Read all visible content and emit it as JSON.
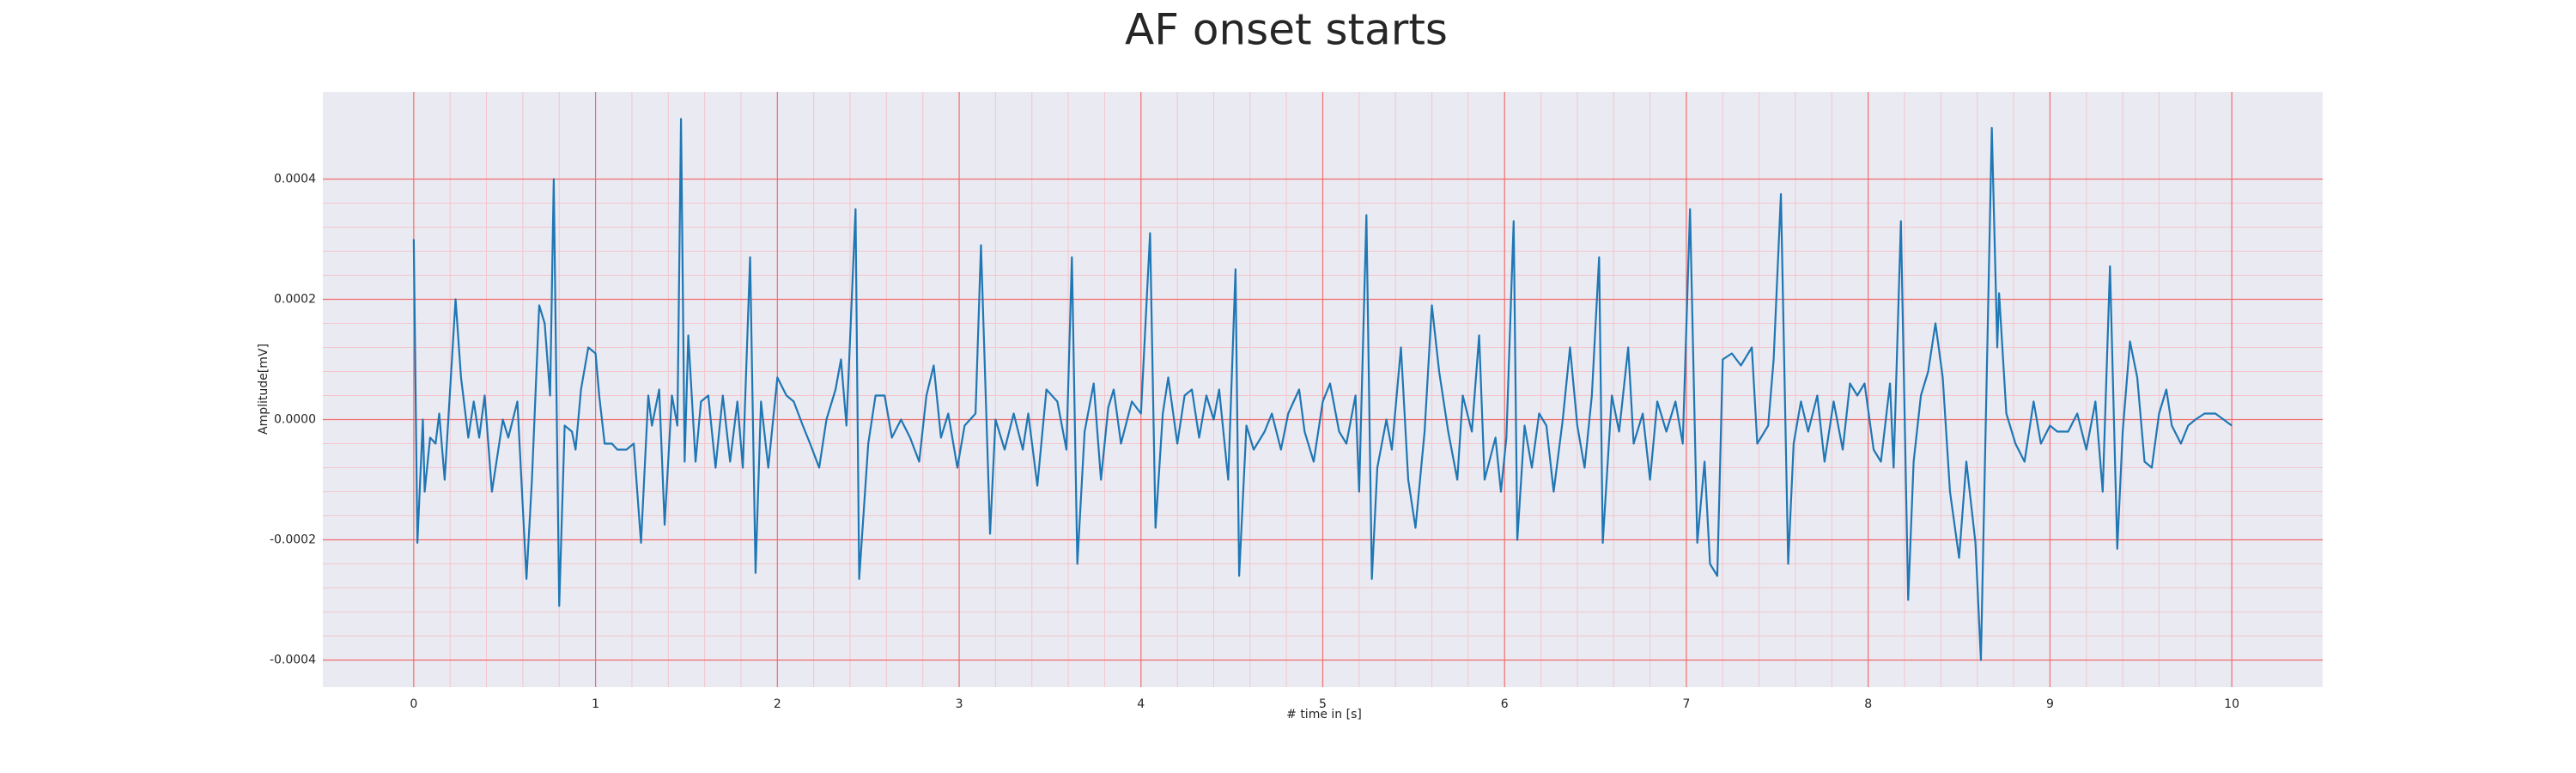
{
  "chart_data": {
    "type": "line",
    "title": "AF onset starts",
    "x_label": "# time in [s]",
    "y_label": "Amplitude[mV]",
    "xlim": [
      -0.5,
      10.5
    ],
    "ylim": [
      -0.000445,
      0.000545
    ],
    "xticks": [
      0,
      1,
      2,
      3,
      4,
      5,
      6,
      7,
      8,
      9,
      10
    ],
    "yticks": [
      -0.0004,
      -0.0002,
      {
        "value": 0,
        "label": "0.0000"
      },
      0.0002,
      0.0004
    ],
    "grid": true,
    "minor_grid": true,
    "background": "#eaeaf2",
    "grid_color": "#f26d6d",
    "minor_grid_color": "#f4c6cc",
    "x": [
      0,
      0.02,
      0.05,
      0.06,
      0.09,
      0.12,
      0.14,
      0.17,
      0.23,
      0.26,
      0.3,
      0.33,
      0.36,
      0.39,
      0.43,
      0.49,
      0.52,
      0.57,
      0.62,
      0.65,
      0.69,
      0.72,
      0.75,
      0.77,
      0.8,
      0.83,
      0.87,
      0.89,
      0.92,
      0.96,
      1.0,
      1.02,
      1.05,
      1.09,
      1.12,
      1.17,
      1.21,
      1.25,
      1.29,
      1.31,
      1.35,
      1.38,
      1.42,
      1.45,
      1.47,
      1.49,
      1.51,
      1.55,
      1.58,
      1.62,
      1.66,
      1.7,
      1.74,
      1.78,
      1.81,
      1.85,
      1.88,
      1.91,
      1.95,
      2.0,
      2.05,
      2.09,
      2.14,
      2.18,
      2.23,
      2.27,
      2.32,
      2.35,
      2.38,
      2.43,
      2.45,
      2.5,
      2.54,
      2.59,
      2.63,
      2.68,
      2.73,
      2.78,
      2.82,
      2.86,
      2.9,
      2.94,
      2.99,
      3.03,
      3.09,
      3.12,
      3.17,
      3.2,
      3.25,
      3.3,
      3.35,
      3.38,
      3.43,
      3.48,
      3.54,
      3.59,
      3.62,
      3.65,
      3.69,
      3.74,
      3.78,
      3.82,
      3.85,
      3.89,
      3.95,
      4.0,
      4.05,
      4.08,
      4.12,
      4.15,
      4.2,
      4.24,
      4.28,
      4.32,
      4.36,
      4.4,
      4.43,
      4.48,
      4.52,
      4.54,
      4.58,
      4.62,
      4.68,
      4.72,
      4.77,
      4.81,
      4.87,
      4.9,
      4.95,
      5.0,
      5.04,
      5.09,
      5.13,
      5.18,
      5.2,
      5.24,
      5.27,
      5.3,
      5.35,
      5.38,
      5.43,
      5.47,
      5.51,
      5.56,
      5.6,
      5.64,
      5.69,
      5.74,
      5.77,
      5.82,
      5.86,
      5.89,
      5.95,
      5.98,
      6.01,
      6.05,
      6.07,
      6.11,
      6.15,
      6.19,
      6.23,
      6.27,
      6.32,
      6.36,
      6.4,
      6.44,
      6.48,
      6.52,
      6.54,
      6.59,
      6.63,
      6.68,
      6.71,
      6.76,
      6.8,
      6.84,
      6.89,
      6.94,
      6.98,
      7.02,
      7.06,
      7.1,
      7.13,
      7.17,
      7.2,
      7.25,
      7.3,
      7.36,
      7.39,
      7.45,
      7.48,
      7.52,
      7.56,
      7.59,
      7.63,
      7.67,
      7.72,
      7.76,
      7.81,
      7.86,
      7.9,
      7.94,
      7.98,
      8.03,
      8.07,
      8.12,
      8.14,
      8.18,
      8.22,
      8.25,
      8.29,
      8.33,
      8.37,
      8.41,
      8.45,
      8.5,
      8.54,
      8.59,
      8.62,
      8.68,
      8.71,
      8.72,
      8.76,
      8.81,
      8.86,
      8.91,
      8.95,
      9.0,
      9.04,
      9.1,
      9.15,
      9.2,
      9.25,
      9.29,
      9.33,
      9.37,
      9.4,
      9.44,
      9.48,
      9.52,
      9.56,
      9.6,
      9.64,
      9.67,
      9.72,
      9.76,
      9.8,
      9.85,
      9.91,
      10.0
    ],
    "series": [
      {
        "color": "#1f77b4",
        "values": [
          0.0003,
          -0.000205,
          0,
          -0.00012,
          -3e-05,
          -4e-05,
          1e-05,
          -0.0001,
          0.0002,
          7e-05,
          -3e-05,
          3e-05,
          -3e-05,
          4e-05,
          -0.00012,
          0,
          -3e-05,
          3e-05,
          -0.000265,
          -0.0001,
          0.00019,
          0.00016,
          4e-05,
          0.0004,
          -0.00031,
          -1e-05,
          -2e-05,
          -5e-05,
          5e-05,
          0.00012,
          0.00011,
          4e-05,
          -4e-05,
          -4e-05,
          -5e-05,
          -5e-05,
          -4e-05,
          -0.000205,
          4e-05,
          -1e-05,
          5e-05,
          -0.000175,
          4e-05,
          -1e-05,
          0.0005,
          -7e-05,
          0.00014,
          -7e-05,
          3e-05,
          4e-05,
          -8e-05,
          4e-05,
          -7e-05,
          3e-05,
          -8e-05,
          0.00027,
          -0.000255,
          3e-05,
          -8e-05,
          7e-05,
          4e-05,
          3e-05,
          -1e-05,
          -4e-05,
          -8e-05,
          0,
          5e-05,
          0.0001,
          -1e-05,
          0.00035,
          -0.000265,
          -4e-05,
          4e-05,
          4e-05,
          -3e-05,
          0,
          -3e-05,
          -7e-05,
          4e-05,
          9e-05,
          -3e-05,
          1e-05,
          -8e-05,
          -1e-05,
          1e-05,
          0.00029,
          -0.00019,
          0,
          -5e-05,
          1e-05,
          -5e-05,
          1e-05,
          -0.00011,
          5e-05,
          3e-05,
          -5e-05,
          0.00027,
          -0.00024,
          -2e-05,
          6e-05,
          -0.0001,
          2e-05,
          5e-05,
          -4e-05,
          3e-05,
          1e-05,
          0.00031,
          -0.00018,
          1e-05,
          7e-05,
          -4e-05,
          4e-05,
          5e-05,
          -3e-05,
          4e-05,
          0,
          5e-05,
          -0.0001,
          0.00025,
          -0.00026,
          -1e-05,
          -5e-05,
          -2e-05,
          1e-05,
          -5e-05,
          1e-05,
          5e-05,
          -2e-05,
          -7e-05,
          3e-05,
          6e-05,
          -2e-05,
          -4e-05,
          4e-05,
          -0.00012,
          0.00034,
          -0.000265,
          -8e-05,
          0,
          -5e-05,
          0.00012,
          -0.0001,
          -0.00018,
          -2e-05,
          0.00019,
          8e-05,
          -2e-05,
          -0.0001,
          4e-05,
          -2e-05,
          0.00014,
          -0.0001,
          -3e-05,
          -0.00012,
          -3e-05,
          0.00033,
          -0.0002,
          -1e-05,
          -8e-05,
          1e-05,
          -1e-05,
          -0.00012,
          0,
          0.00012,
          -1e-05,
          -8e-05,
          4e-05,
          0.00027,
          -0.000205,
          4e-05,
          -2e-05,
          0.00012,
          -4e-05,
          1e-05,
          -0.0001,
          3e-05,
          -2e-05,
          3e-05,
          -4e-05,
          0.00035,
          -0.000205,
          -7e-05,
          -0.00024,
          -0.00026,
          0.0001,
          0.00011,
          9e-05,
          0.00012,
          -4e-05,
          -1e-05,
          0.0001,
          0.000375,
          -0.00024,
          -4e-05,
          3e-05,
          -2e-05,
          4e-05,
          -7e-05,
          3e-05,
          -5e-05,
          6e-05,
          4e-05,
          6e-05,
          -5e-05,
          -7e-05,
          6e-05,
          -8e-05,
          0.00033,
          -0.0003,
          -7e-05,
          4e-05,
          8e-05,
          0.00016,
          7e-05,
          -0.00012,
          -0.00023,
          -7e-05,
          -0.000205,
          -0.0004,
          0.000485,
          0.00012,
          0.00021,
          1e-05,
          -4e-05,
          -7e-05,
          3e-05,
          -4e-05,
          -1e-05,
          -2e-05,
          -2e-05,
          1e-05,
          -5e-05,
          3e-05,
          -0.00012,
          0.000255,
          -0.000215,
          -2e-05,
          0.00013,
          7e-05,
          -7e-05,
          -8e-05,
          1e-05,
          5e-05,
          -1e-05,
          -4e-05,
          -1e-05,
          0,
          1e-05,
          1e-05,
          -1e-05
        ]
      }
    ]
  }
}
